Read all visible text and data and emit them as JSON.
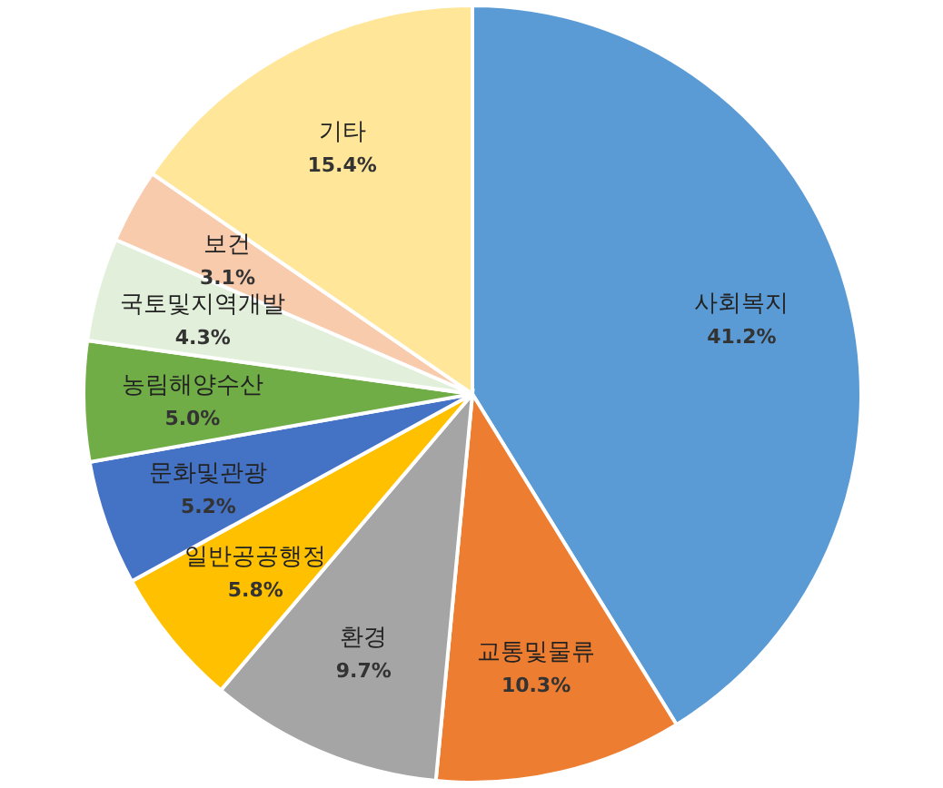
{
  "chart_data": {
    "type": "pie",
    "categories": [
      "사회복지",
      "교통및물류",
      "환경",
      "일반공공행정",
      "문화및관광",
      "농림해양수산",
      "국토및지역개발",
      "보건",
      "기타"
    ],
    "values": [
      41.2,
      10.3,
      9.7,
      5.8,
      5.2,
      5.0,
      4.3,
      3.1,
      15.4
    ],
    "colors": [
      "#5b9bd5",
      "#ed7d31",
      "#a5a5a5",
      "#ffc000",
      "#4472c4",
      "#70ad47",
      "#e2efda",
      "#f8cbad",
      "#ffe699"
    ],
    "value_labels": [
      "41.2%",
      "10.3%",
      "9.7%",
      "5.8%",
      "5.2%",
      "5.0%",
      "4.3%",
      "3.1%",
      "15.4%"
    ]
  }
}
